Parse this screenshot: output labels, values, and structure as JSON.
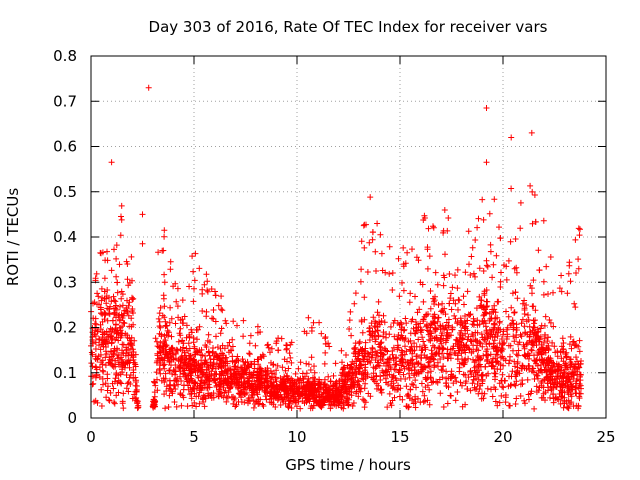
{
  "chart_data": {
    "type": "scatter",
    "title": "Day 303 of 2016, Rate Of TEC Index for receiver vars",
    "xlabel": "GPS time / hours",
    "ylabel": "ROTI / TECUs",
    "xlim": [
      0,
      25
    ],
    "ylim": [
      0,
      0.8
    ],
    "grid": true,
    "marker": "+",
    "color": "#ff0000",
    "xticks": [
      0,
      5,
      10,
      15,
      20,
      25
    ],
    "yticks": [
      0,
      0.1,
      0.2,
      0.3,
      0.4,
      0.5,
      0.6,
      0.7,
      0.8
    ],
    "xtick_labels": [
      "0",
      "5",
      "10",
      "15",
      "20",
      "25"
    ],
    "ytick_labels": [
      "0",
      "0.1",
      "0.2",
      "0.3",
      "0.4",
      "0.5",
      "0.6",
      "0.7",
      "0.8"
    ],
    "series": [
      {
        "name": "ROTI",
        "x_range": [
          0,
          23.8
        ],
        "envelope": [
          {
            "x": 0.0,
            "base": 0.15,
            "spread": 0.09,
            "peak": 0.33
          },
          {
            "x": 0.5,
            "base": 0.16,
            "spread": 0.1,
            "peak": 0.37
          },
          {
            "x": 1.0,
            "base": 0.16,
            "spread": 0.1,
            "peak": 0.42
          },
          {
            "x": 1.5,
            "base": 0.16,
            "spread": 0.1,
            "peak": 0.47
          },
          {
            "x": 2.0,
            "base": 0.16,
            "spread": 0.1,
            "peak": 0.36
          },
          {
            "x": 2.3,
            "base": 0.0,
            "spread": 0.0,
            "peak": 0.0
          },
          {
            "x": 3.0,
            "base": 0.0,
            "spread": 0.0,
            "peak": 0.0
          },
          {
            "x": 3.3,
            "base": 0.15,
            "spread": 0.08,
            "peak": 0.45
          },
          {
            "x": 4.0,
            "base": 0.12,
            "spread": 0.07,
            "peak": 0.36
          },
          {
            "x": 5.0,
            "base": 0.11,
            "spread": 0.06,
            "peak": 0.38
          },
          {
            "x": 6.0,
            "base": 0.1,
            "spread": 0.05,
            "peak": 0.3
          },
          {
            "x": 7.0,
            "base": 0.085,
            "spread": 0.04,
            "peak": 0.22
          },
          {
            "x": 8.0,
            "base": 0.075,
            "spread": 0.035,
            "peak": 0.21
          },
          {
            "x": 9.0,
            "base": 0.065,
            "spread": 0.03,
            "peak": 0.18
          },
          {
            "x": 10.0,
            "base": 0.06,
            "spread": 0.03,
            "peak": 0.2
          },
          {
            "x": 11.0,
            "base": 0.055,
            "spread": 0.025,
            "peak": 0.24
          },
          {
            "x": 12.0,
            "base": 0.05,
            "spread": 0.025,
            "peak": 0.12
          },
          {
            "x": 12.5,
            "base": 0.08,
            "spread": 0.05,
            "peak": 0.25
          },
          {
            "x": 13.5,
            "base": 0.14,
            "spread": 0.08,
            "peak": 0.51
          },
          {
            "x": 14.5,
            "base": 0.12,
            "spread": 0.07,
            "peak": 0.4
          },
          {
            "x": 15.5,
            "base": 0.13,
            "spread": 0.08,
            "peak": 0.4
          },
          {
            "x": 16.5,
            "base": 0.16,
            "spread": 0.1,
            "peak": 0.49
          },
          {
            "x": 17.5,
            "base": 0.15,
            "spread": 0.09,
            "peak": 0.45
          },
          {
            "x": 18.5,
            "base": 0.15,
            "spread": 0.09,
            "peak": 0.43
          },
          {
            "x": 19.2,
            "base": 0.16,
            "spread": 0.1,
            "peak": 0.52
          },
          {
            "x": 20.0,
            "base": 0.14,
            "spread": 0.08,
            "peak": 0.48
          },
          {
            "x": 21.0,
            "base": 0.15,
            "spread": 0.09,
            "peak": 0.56
          },
          {
            "x": 21.5,
            "base": 0.16,
            "spread": 0.1,
            "peak": 0.59
          },
          {
            "x": 22.0,
            "base": 0.11,
            "spread": 0.07,
            "peak": 0.44
          },
          {
            "x": 23.0,
            "base": 0.08,
            "spread": 0.05,
            "peak": 0.3
          },
          {
            "x": 23.7,
            "base": 0.09,
            "spread": 0.06,
            "peak": 0.44
          }
        ],
        "outliers": [
          {
            "x": 2.8,
            "y": 0.73
          },
          {
            "x": 1.0,
            "y": 0.565
          },
          {
            "x": 19.2,
            "y": 0.685
          },
          {
            "x": 19.2,
            "y": 0.565
          },
          {
            "x": 20.4,
            "y": 0.62
          },
          {
            "x": 21.4,
            "y": 0.63
          },
          {
            "x": 2.5,
            "y": 0.45
          },
          {
            "x": 2.5,
            "y": 0.385
          }
        ]
      }
    ]
  }
}
